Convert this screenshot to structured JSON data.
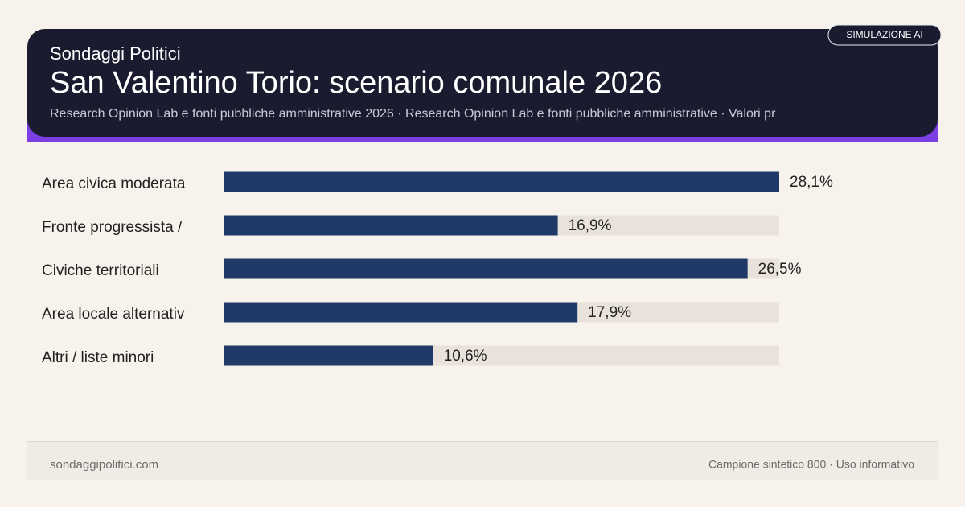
{
  "header": {
    "kicker": "Sondaggi Politici",
    "title": "San Valentino Torio: scenario comunale 2026",
    "subtitle": "Research Opinion Lab e fonti pubbliche amministrative 2026 · Research Opinion Lab e fonti pubbliche amministrative · Valori pr",
    "badge": "SIMULAZIONE AI"
  },
  "chart_data": {
    "type": "bar",
    "orientation": "horizontal",
    "categories": [
      "Area civica moderata",
      "Fronte progressista /",
      "Civiche territoriali",
      "Area locale alternativ",
      "Altri / liste minori"
    ],
    "values": [
      28.1,
      16.9,
      26.5,
      17.9,
      10.6
    ],
    "value_labels": [
      "28,1%",
      "16,9%",
      "26,5%",
      "17,9%",
      "10,6%"
    ],
    "color": "#1f3a68",
    "track_color": "#e8e2da",
    "xlim": [
      0,
      28.1
    ]
  },
  "footer": {
    "left": "sondaggipolitici.com",
    "right": "Campione sintetico 800 · Uso informativo"
  }
}
